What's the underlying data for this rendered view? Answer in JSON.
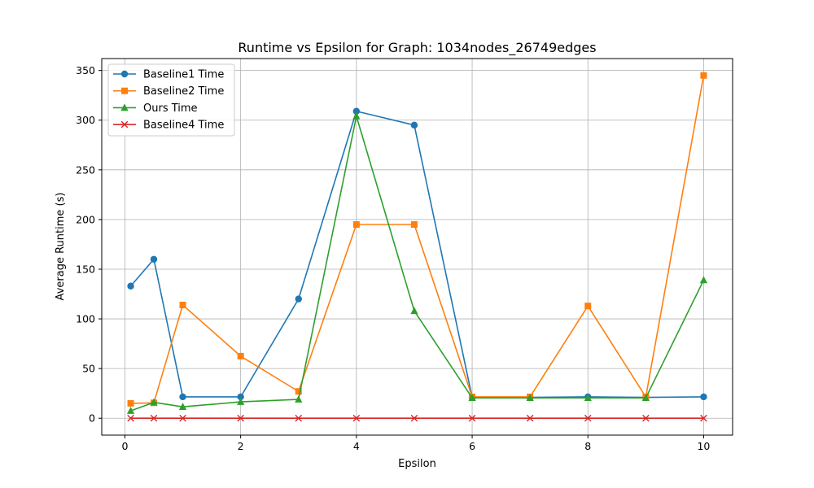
{
  "chart_data": {
    "type": "line",
    "title": "Runtime vs Epsilon for Graph: 1034nodes_26749edges",
    "xlabel": "Epsilon",
    "ylabel": "Average Runtime (s)",
    "xlim": [
      -0.4,
      10.5
    ],
    "ylim": [
      -17,
      362
    ],
    "xticks": [
      0,
      2,
      4,
      6,
      8,
      10
    ],
    "yticks": [
      0,
      50,
      100,
      150,
      200,
      250,
      300,
      350
    ],
    "grid": true,
    "legend_position": "top-left",
    "x": [
      0.1,
      0.5,
      1,
      2,
      3,
      4,
      5,
      6,
      7,
      8,
      9,
      10
    ],
    "series": [
      {
        "name": "Baseline1 Time",
        "color": "#1f77b4",
        "marker": "circle",
        "values": [
          133,
          160,
          21.5,
          21.5,
          120,
          309,
          295,
          21,
          21,
          21.5,
          21,
          21.5
        ]
      },
      {
        "name": "Baseline2 Time",
        "color": "#ff7f0e",
        "marker": "square",
        "values": [
          15,
          15.5,
          114,
          62.5,
          27,
          195,
          195,
          21.5,
          21.5,
          113,
          21.5,
          345
        ]
      },
      {
        "name": "Ours Time",
        "color": "#2ca02c",
        "marker": "triangle",
        "values": [
          7.5,
          16,
          11.5,
          16.5,
          19,
          304,
          108,
          20.5,
          20.5,
          20.5,
          20.5,
          139
        ]
      },
      {
        "name": "Baseline4 Time",
        "color": "#d62728",
        "marker": "x",
        "values": [
          0,
          0,
          0,
          0,
          0,
          0,
          0,
          0,
          0,
          0,
          0,
          0
        ]
      }
    ]
  }
}
